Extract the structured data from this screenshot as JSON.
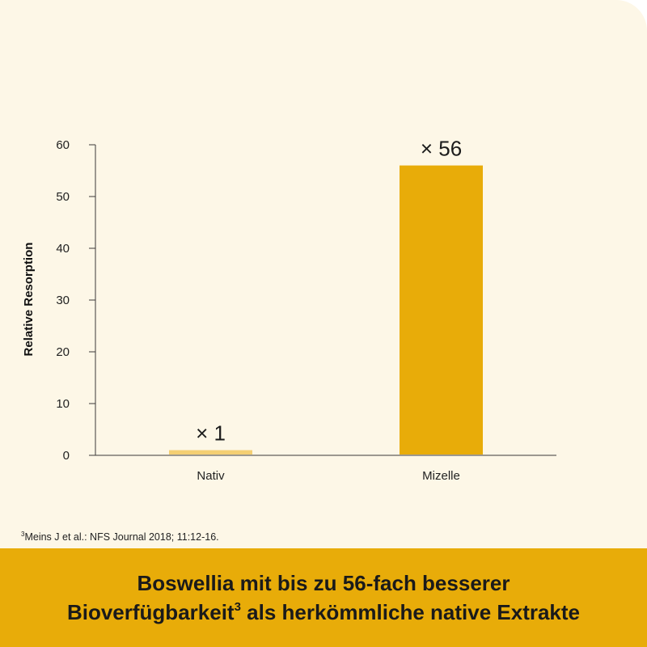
{
  "chart_data": {
    "type": "bar",
    "categories": [
      "Nativ",
      "Mizelle"
    ],
    "values": [
      1,
      56
    ],
    "data_labels": [
      "× 1",
      "× 56"
    ],
    "ylabel": "Relative Resorption",
    "xlabel": "",
    "ylim": [
      0,
      60
    ],
    "yticks": [
      0,
      10,
      20,
      30,
      40,
      50,
      60
    ],
    "grid": false,
    "bar_colors": [
      "#f4cf73",
      "#e8ac09"
    ]
  },
  "footnote": {
    "marker": "3",
    "text": "Meins J et al.: NFS Journal 2018; 11:12-16."
  },
  "headline": {
    "line1": "Boswellia mit bis zu 56-fach besserer",
    "line2_before": "Bioverfügbarkeit",
    "line2_marker": "3",
    "line2_after": " als herkömmliche native Extrakte"
  },
  "colors": {
    "background": "#fdf7e7",
    "banner": "#e8ac09",
    "axis": "#3a3a3a"
  }
}
